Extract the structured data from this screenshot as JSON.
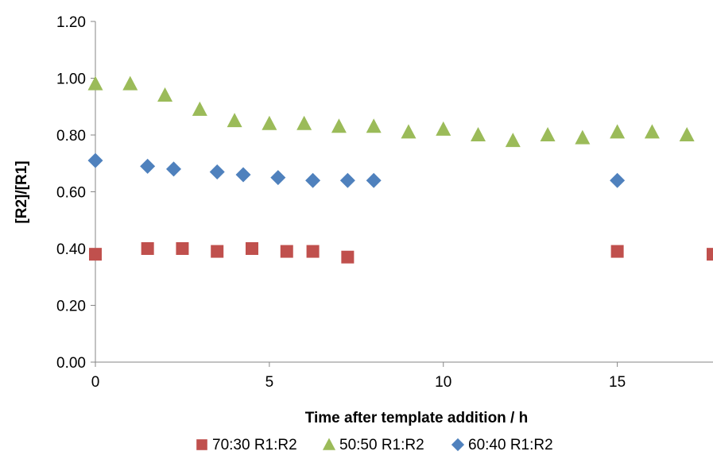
{
  "chart_data": {
    "type": "scatter",
    "xlabel": "Time after template addition / h",
    "ylabel": "[R2]/[R1]",
    "xlim": [
      0,
      17.75
    ],
    "ylim": [
      0,
      1.2
    ],
    "x_ticks": [
      "0",
      "5",
      "10",
      "15"
    ],
    "x_tick_values": [
      0,
      5,
      10,
      15
    ],
    "y_ticks": [
      "0.00",
      "0.20",
      "0.40",
      "0.60",
      "0.80",
      "1.00",
      "1.20"
    ],
    "y_tick_values": [
      0,
      0.2,
      0.4,
      0.6,
      0.8,
      1.0,
      1.2
    ],
    "grid": false,
    "legend_position": "bottom",
    "series": [
      {
        "name": "70:30 R1:R2",
        "marker": "square",
        "color": "#C0504D",
        "x": [
          0,
          1.5,
          2.5,
          3.5,
          4.5,
          5.5,
          6.25,
          7.25,
          15,
          17.75
        ],
        "y": [
          0.38,
          0.4,
          0.4,
          0.39,
          0.4,
          0.39,
          0.39,
          0.37,
          0.39,
          0.38
        ]
      },
      {
        "name": "50:50 R1:R2",
        "marker": "triangle",
        "color": "#9BBB59",
        "x": [
          0,
          1,
          2,
          3,
          4,
          5,
          6,
          7,
          8,
          9,
          10,
          11,
          12,
          13,
          14,
          15,
          16,
          17
        ],
        "y": [
          0.98,
          0.98,
          0.94,
          0.89,
          0.85,
          0.84,
          0.84,
          0.83,
          0.83,
          0.81,
          0.82,
          0.8,
          0.78,
          0.8,
          0.79,
          0.81,
          0.81,
          0.8
        ]
      },
      {
        "name": "60:40 R1:R2",
        "marker": "diamond",
        "color": "#4F81BD",
        "x": [
          0,
          1.5,
          2.25,
          3.5,
          4.25,
          5.25,
          6.25,
          7.25,
          8,
          15
        ],
        "y": [
          0.71,
          0.69,
          0.68,
          0.67,
          0.66,
          0.65,
          0.64,
          0.64,
          0.64,
          0.64
        ]
      }
    ]
  }
}
